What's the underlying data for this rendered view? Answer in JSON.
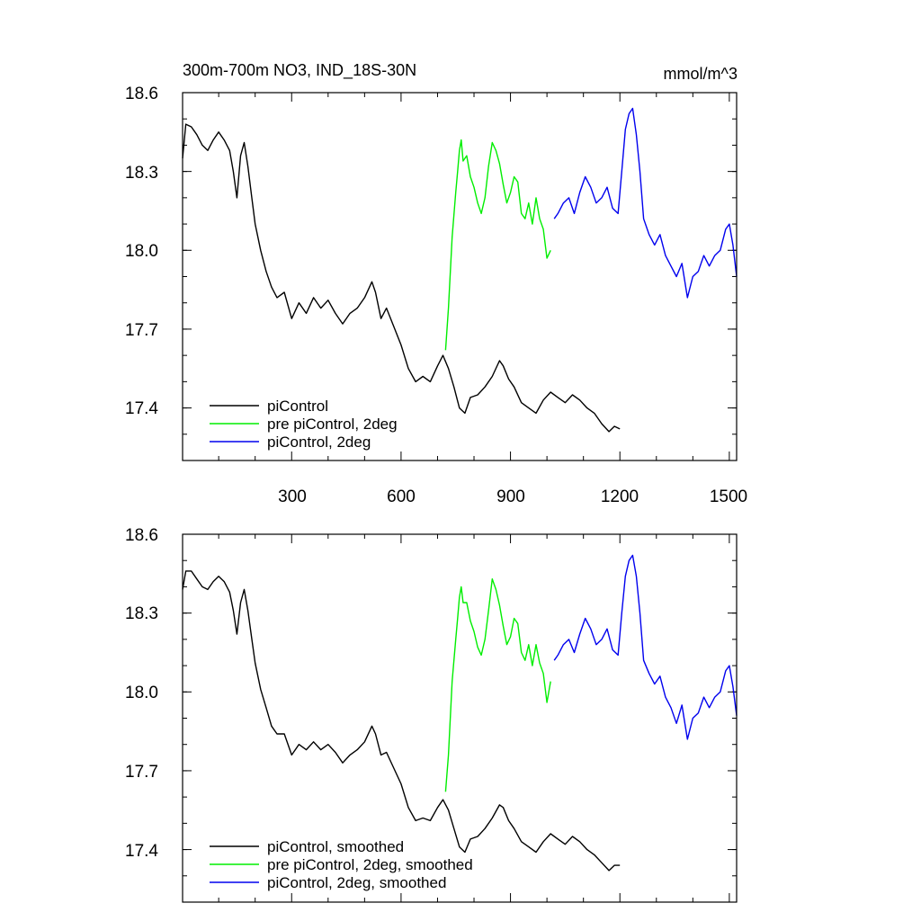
{
  "chart_data": [
    {
      "type": "line",
      "title": "300m-700m NO3, IND_18S-30N",
      "units": "mmol/m^3",
      "xlim": [
        1,
        1520
      ],
      "ylim": [
        17.2,
        18.6
      ],
      "x_ticks": [
        300,
        600,
        900,
        1200,
        1500
      ],
      "x_tick_labels": [
        "300",
        "600",
        "900",
        "1200",
        "1500"
      ],
      "y_ticks": [
        17.4,
        17.7,
        18.0,
        18.3,
        18.6
      ],
      "y_tick_labels": [
        "17.4",
        "17.7",
        "18.0",
        "18.3",
        "18.6"
      ],
      "legend_position": "bottom-left",
      "series": [
        {
          "name": "piControl",
          "color": "#000000",
          "x": [
            1,
            10,
            25,
            40,
            55,
            70,
            85,
            100,
            115,
            130,
            140,
            150,
            160,
            170,
            180,
            190,
            200,
            215,
            230,
            245,
            260,
            280,
            300,
            320,
            340,
            360,
            380,
            400,
            420,
            440,
            460,
            480,
            500,
            520,
            530,
            545,
            560,
            580,
            600,
            620,
            640,
            660,
            680,
            700,
            715,
            730,
            745,
            760,
            775,
            790,
            810,
            830,
            850,
            870,
            880,
            895,
            910,
            930,
            950,
            970,
            990,
            1010,
            1030,
            1050,
            1070,
            1090,
            1110,
            1130,
            1150,
            1170,
            1185,
            1200
          ],
          "y": [
            18.35,
            18.48,
            18.47,
            18.44,
            18.4,
            18.38,
            18.42,
            18.45,
            18.42,
            18.38,
            18.3,
            18.2,
            18.36,
            18.41,
            18.32,
            18.21,
            18.1,
            18.0,
            17.92,
            17.86,
            17.82,
            17.84,
            17.74,
            17.8,
            17.76,
            17.82,
            17.78,
            17.81,
            17.76,
            17.72,
            17.76,
            17.78,
            17.82,
            17.88,
            17.84,
            17.74,
            17.78,
            17.71,
            17.64,
            17.55,
            17.5,
            17.52,
            17.5,
            17.56,
            17.6,
            17.55,
            17.48,
            17.4,
            17.38,
            17.44,
            17.45,
            17.48,
            17.52,
            17.58,
            17.56,
            17.51,
            17.48,
            17.42,
            17.4,
            17.38,
            17.43,
            17.46,
            17.44,
            17.42,
            17.45,
            17.43,
            17.4,
            17.38,
            17.34,
            17.31,
            17.33,
            17.32
          ]
        },
        {
          "name": "pre piControl, 2deg",
          "color": "#00ee00",
          "x": [
            722,
            730,
            740,
            750,
            755,
            760,
            765,
            770,
            780,
            790,
            800,
            810,
            820,
            830,
            840,
            850,
            860,
            870,
            880,
            890,
            900,
            910,
            920,
            930,
            940,
            950,
            960,
            970,
            980,
            990,
            1000,
            1010
          ],
          "y": [
            17.62,
            17.78,
            18.05,
            18.22,
            18.3,
            18.38,
            18.42,
            18.34,
            18.36,
            18.28,
            18.24,
            18.18,
            18.14,
            18.2,
            18.32,
            18.41,
            18.38,
            18.33,
            18.25,
            18.18,
            18.22,
            18.28,
            18.26,
            18.14,
            18.12,
            18.18,
            18.1,
            18.2,
            18.12,
            18.08,
            17.97,
            18.0
          ]
        },
        {
          "name": "piControl, 2deg",
          "color": "#0000ee",
          "x": [
            1020,
            1030,
            1045,
            1060,
            1075,
            1090,
            1105,
            1120,
            1135,
            1150,
            1165,
            1180,
            1195,
            1205,
            1215,
            1225,
            1235,
            1245,
            1255,
            1265,
            1280,
            1295,
            1310,
            1325,
            1340,
            1355,
            1370,
            1385,
            1400,
            1415,
            1430,
            1445,
            1460,
            1475,
            1490,
            1500,
            1510,
            1520
          ],
          "y": [
            18.12,
            18.14,
            18.18,
            18.2,
            18.14,
            18.22,
            18.28,
            18.24,
            18.18,
            18.2,
            18.24,
            18.16,
            18.14,
            18.3,
            18.46,
            18.52,
            18.54,
            18.44,
            18.3,
            18.12,
            18.06,
            18.02,
            18.06,
            17.98,
            17.94,
            17.9,
            17.95,
            17.82,
            17.9,
            17.92,
            17.98,
            17.94,
            17.98,
            18.0,
            18.08,
            18.1,
            18.02,
            17.9
          ]
        }
      ]
    },
    {
      "type": "line",
      "xlim": [
        1,
        1520
      ],
      "ylim": [
        17.2,
        18.6
      ],
      "x_ticks": [
        300,
        600,
        900,
        1200,
        1500
      ],
      "y_ticks": [
        17.4,
        17.7,
        18.0,
        18.3,
        18.6
      ],
      "y_tick_labels": [
        "17.4",
        "17.7",
        "18.0",
        "18.3",
        "18.6"
      ],
      "legend_position": "bottom-left",
      "series": [
        {
          "name": "piControl, smoothed",
          "color": "#000000",
          "x": [
            1,
            10,
            25,
            40,
            55,
            70,
            85,
            100,
            115,
            130,
            140,
            150,
            160,
            170,
            180,
            190,
            200,
            215,
            230,
            245,
            260,
            280,
            300,
            320,
            340,
            360,
            380,
            400,
            420,
            440,
            460,
            480,
            500,
            520,
            530,
            545,
            560,
            580,
            600,
            620,
            640,
            660,
            680,
            700,
            715,
            730,
            745,
            760,
            775,
            790,
            810,
            830,
            850,
            870,
            880,
            895,
            910,
            930,
            950,
            970,
            990,
            1010,
            1030,
            1050,
            1070,
            1090,
            1110,
            1130,
            1150,
            1170,
            1185,
            1200
          ],
          "y": [
            18.39,
            18.46,
            18.46,
            18.43,
            18.4,
            18.39,
            18.42,
            18.44,
            18.42,
            18.38,
            18.31,
            18.22,
            18.34,
            18.39,
            18.31,
            18.21,
            18.11,
            18.01,
            17.94,
            17.87,
            17.84,
            17.84,
            17.76,
            17.8,
            17.78,
            17.81,
            17.78,
            17.8,
            17.77,
            17.73,
            17.76,
            17.78,
            17.81,
            17.87,
            17.84,
            17.76,
            17.77,
            17.71,
            17.65,
            17.56,
            17.51,
            17.52,
            17.51,
            17.56,
            17.59,
            17.55,
            17.48,
            17.41,
            17.39,
            17.44,
            17.45,
            17.48,
            17.52,
            17.57,
            17.56,
            17.51,
            17.48,
            17.43,
            17.41,
            17.39,
            17.43,
            17.46,
            17.44,
            17.42,
            17.45,
            17.43,
            17.4,
            17.38,
            17.35,
            17.32,
            17.34,
            17.34
          ]
        },
        {
          "name": "pre piControl, 2deg, smoothed",
          "color": "#00ee00",
          "x": [
            722,
            730,
            740,
            750,
            755,
            760,
            765,
            770,
            780,
            790,
            800,
            810,
            820,
            830,
            840,
            850,
            860,
            870,
            880,
            890,
            900,
            910,
            920,
            930,
            940,
            950,
            960,
            970,
            980,
            990,
            1000,
            1010
          ],
          "y": [
            17.62,
            17.76,
            18.04,
            18.2,
            18.28,
            18.36,
            18.4,
            18.34,
            18.34,
            18.27,
            18.23,
            18.17,
            18.14,
            18.2,
            18.31,
            18.43,
            18.39,
            18.33,
            18.25,
            18.18,
            18.21,
            18.28,
            18.26,
            18.15,
            18.12,
            18.18,
            18.1,
            18.18,
            18.11,
            18.07,
            17.96,
            18.04
          ]
        },
        {
          "name": "piControl, 2deg, smoothed",
          "color": "#0000ee",
          "x": [
            1020,
            1030,
            1045,
            1060,
            1075,
            1090,
            1105,
            1120,
            1135,
            1150,
            1165,
            1180,
            1195,
            1205,
            1215,
            1225,
            1235,
            1245,
            1255,
            1265,
            1280,
            1295,
            1310,
            1325,
            1340,
            1355,
            1370,
            1385,
            1400,
            1415,
            1430,
            1445,
            1460,
            1475,
            1490,
            1500,
            1510,
            1520
          ],
          "y": [
            18.12,
            18.14,
            18.18,
            18.2,
            18.15,
            18.22,
            18.28,
            18.24,
            18.18,
            18.2,
            18.24,
            18.16,
            18.14,
            18.3,
            18.44,
            18.5,
            18.52,
            18.44,
            18.3,
            18.12,
            18.07,
            18.03,
            18.06,
            17.98,
            17.94,
            17.88,
            17.95,
            17.82,
            17.9,
            17.92,
            17.98,
            17.94,
            17.98,
            18.0,
            18.08,
            18.1,
            18.02,
            17.91
          ]
        }
      ]
    }
  ]
}
